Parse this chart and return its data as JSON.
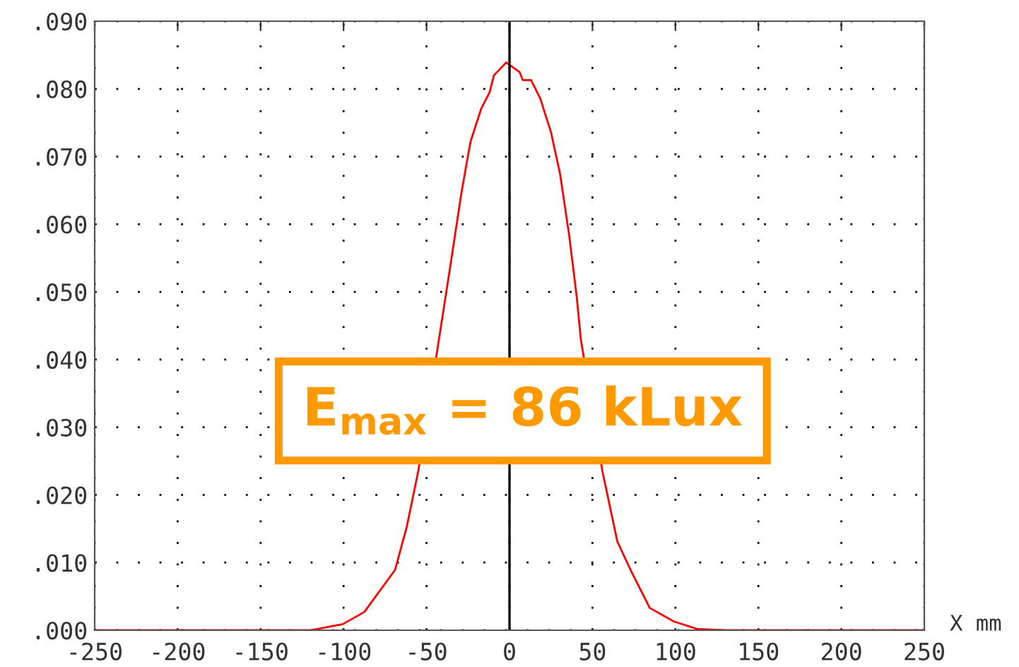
{
  "chart_data": {
    "type": "line",
    "xlabel": "X mm",
    "series": [
      {
        "color": "#ff0000",
        "x": [
          -250,
          -120,
          -100.5,
          -87.5,
          -69,
          -62,
          -55,
          -50,
          -42.5,
          -35,
          -29,
          -23.5,
          -17,
          -12,
          -9.4,
          -2,
          6,
          8,
          13,
          18.5,
          25,
          30.5,
          36,
          40.5,
          43,
          50,
          56,
          65,
          73,
          84.5,
          99,
          113,
          130,
          250
        ],
        "values": [
          0,
          0,
          0.0009,
          0.0027,
          0.0089,
          0.0152,
          0.0235,
          null,
          0.043,
          0.0549,
          0.0646,
          0.0722,
          0.0771,
          0.0795,
          0.082,
          0.0839,
          0.0825,
          0.0813,
          0.0813,
          0.0786,
          0.0736,
          0.0674,
          0.0583,
          0.0493,
          0.043,
          null,
          0.0235,
          0.0131,
          0.0089,
          0.0033,
          0.0013,
          0.0002,
          0,
          0
        ]
      }
    ],
    "xlim": [
      -250,
      250
    ],
    "xticks": [
      -250,
      -200,
      -150,
      -100,
      -50,
      0,
      50,
      100,
      150,
      200,
      250
    ],
    "ylim": [
      0,
      0.09
    ],
    "yticks": [
      {
        "value": 0,
        "label": ".000"
      },
      {
        "value": 0.01,
        "label": ".010"
      },
      {
        "value": 0.02,
        "label": ".020"
      },
      {
        "value": 0.03,
        "label": ".030"
      },
      {
        "value": 0.04,
        "label": ".040"
      },
      {
        "value": 0.05,
        "label": ".050"
      },
      {
        "value": 0.06,
        "label": ".060"
      },
      {
        "value": 0.07,
        "label": ".070"
      },
      {
        "value": 0.08,
        "label": ".080"
      },
      {
        "value": 0.09,
        "label": ".090"
      }
    ],
    "grid": true,
    "marker": "none",
    "line_style": "solid",
    "ref_lines": [
      {
        "axis": "x",
        "value": 0,
        "color": "#000000"
      }
    ],
    "annotations": [
      "E$_{max}$ = 86 kLux"
    ]
  }
}
